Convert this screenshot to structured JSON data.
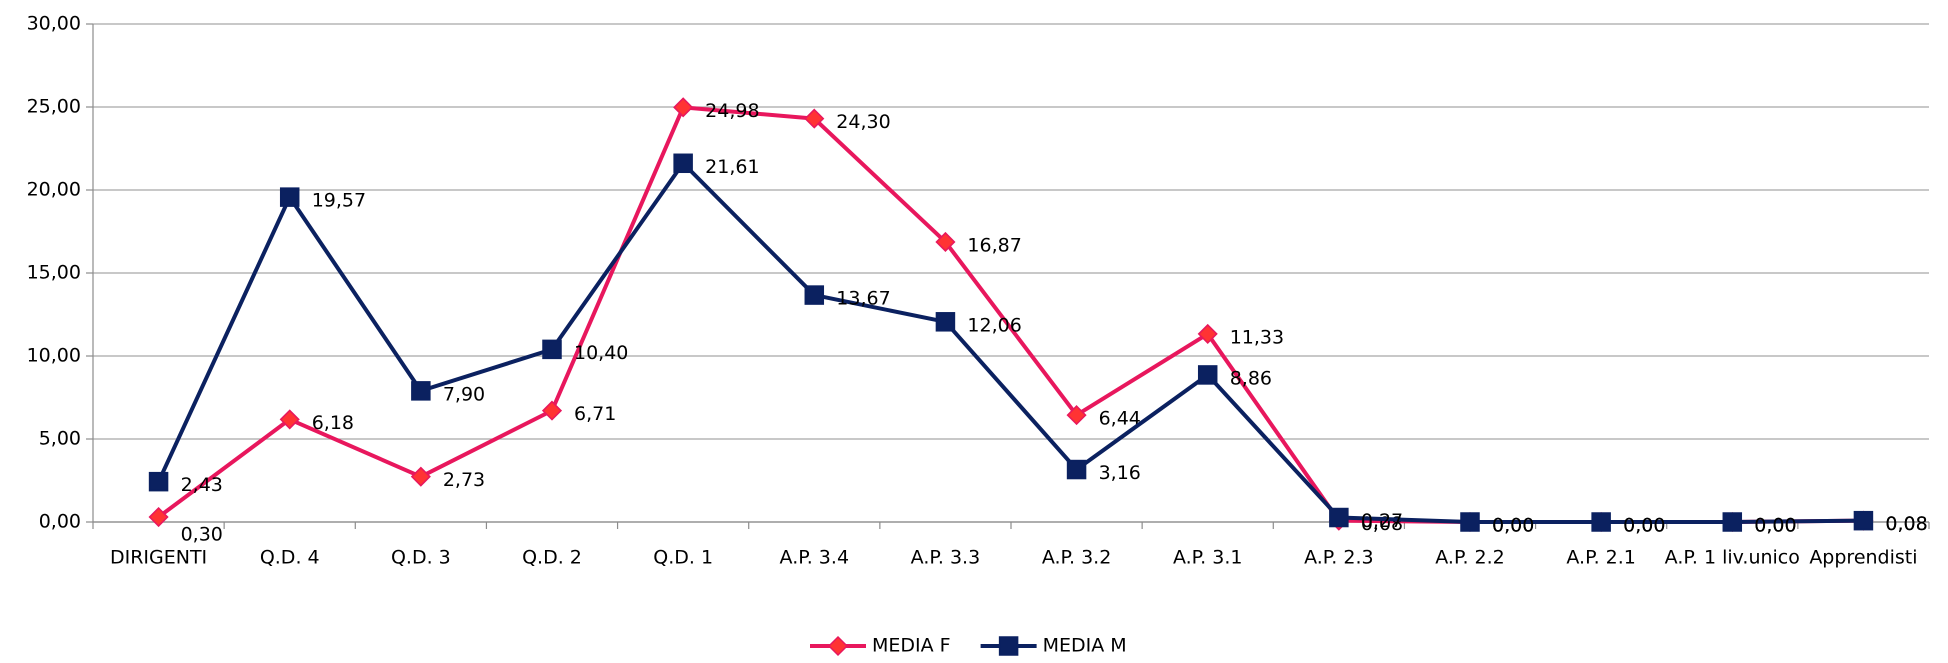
{
  "chart_data": {
    "type": "line",
    "categories": [
      "DIRIGENTI",
      "Q.D. 4",
      "Q.D. 3",
      "Q.D. 2",
      "Q.D. 1",
      "A.P. 3.4",
      "A.P. 3.3",
      "A.P. 3.2",
      "A.P. 3.1",
      "A.P. 2.3",
      "A.P. 2.2",
      "A.P. 2.1",
      "A.P. 1 liv.unico",
      "Apprendisti"
    ],
    "series": [
      {
        "name": "MEDIA F",
        "color": "#e8175d",
        "marker_fill": "#ff3333",
        "marker": "diamond",
        "values": [
          0.3,
          6.18,
          2.73,
          6.71,
          24.98,
          24.3,
          16.87,
          6.44,
          11.33,
          0.08,
          0.0,
          0.0,
          0.0,
          0.08
        ],
        "value_labels": [
          "0,30",
          "6,18",
          "2,73",
          "6,71",
          "24,98",
          "24,30",
          "16,87",
          "6,44",
          "11,33",
          "0,08",
          "0,00",
          "0,00",
          "0,00",
          "0,08"
        ]
      },
      {
        "name": "MEDIA M",
        "color": "#0b2160",
        "marker_fill": "#0b2160",
        "marker": "square",
        "values": [
          2.43,
          19.57,
          7.9,
          10.4,
          21.61,
          13.67,
          12.06,
          3.16,
          8.86,
          0.27,
          0.0,
          0.0,
          0.0,
          0.08
        ],
        "value_labels": [
          "2,43",
          "19,57",
          "7,90",
          "10,40",
          "21,61",
          "13,67",
          "12,06",
          "3,16",
          "8,86",
          "0,27",
          "0,00",
          "0,00",
          "0,00",
          "0,08"
        ]
      }
    ],
    "ylim": [
      0,
      30
    ],
    "yticks": [
      {
        "value": 0,
        "label": "0,00"
      },
      {
        "value": 5,
        "label": "5,00"
      },
      {
        "value": 10,
        "label": "10,00"
      },
      {
        "value": 15,
        "label": "15,00"
      },
      {
        "value": 20,
        "label": "20,00"
      },
      {
        "value": 25,
        "label": "25,00"
      },
      {
        "value": 30,
        "label": "30,00"
      }
    ],
    "grid": true,
    "legend": "bottom"
  }
}
